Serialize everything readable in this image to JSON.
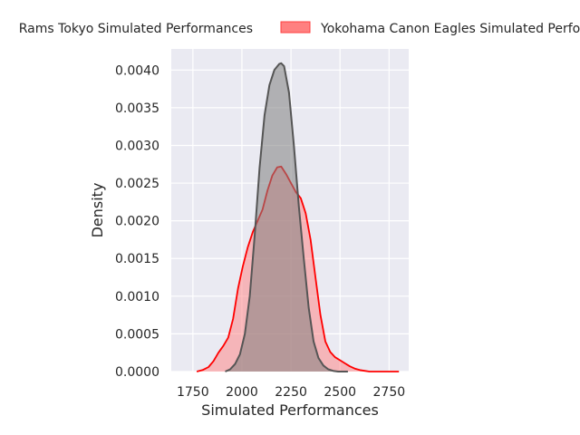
{
  "chart_data": {
    "type": "area",
    "chart_kind": "kde density",
    "title": "",
    "xlabel": "Simulated Performances",
    "ylabel": "Density",
    "xlim": [
      1640,
      2850
    ],
    "ylim": [
      0,
      0.00428
    ],
    "x_ticks": [
      1750,
      2000,
      2250,
      2500,
      2750
    ],
    "x_tick_labels": [
      "1750",
      "2000",
      "2250",
      "2500",
      "2750"
    ],
    "y_ticks": [
      0,
      0.0005,
      0.001,
      0.0015,
      0.002,
      0.0025,
      0.003,
      0.0035,
      0.004
    ],
    "y_tick_labels": [
      "0.0000",
      "0.0005",
      "0.0010",
      "0.0015",
      "0.0020",
      "0.0025",
      "0.0030",
      "0.0035",
      "0.0040"
    ],
    "grid": true,
    "background_color": "#eaeaf2",
    "legend_position": "top-center, outside plot",
    "series": [
      {
        "name": "Rams Tokyo Simulated Performances",
        "color": "#555555",
        "fill_color": "#808080",
        "x": [
          1915,
          1940,
          1965,
          1990,
          2015,
          2040,
          2065,
          2090,
          2115,
          2140,
          2165,
          2190,
          2200,
          2215,
          2240,
          2265,
          2290,
          2315,
          2340,
          2365,
          2390,
          2415,
          2440,
          2465,
          2490,
          2515,
          2540
        ],
        "y": [
          0.0,
          3e-05,
          0.0001,
          0.00023,
          0.0005,
          0.001,
          0.0018,
          0.0027,
          0.0034,
          0.0038,
          0.004,
          0.00408,
          0.00409,
          0.00405,
          0.0037,
          0.003,
          0.0022,
          0.0015,
          0.00085,
          0.0004,
          0.00018,
          8e-05,
          3e-05,
          1e-05,
          0.0,
          0.0,
          0.0
        ]
      },
      {
        "name": "Yokohama Canon Eagles Simulated Performances",
        "color": "#ff0000",
        "fill_color": "#ff8080",
        "x": [
          1770,
          1800,
          1830,
          1855,
          1880,
          1905,
          1930,
          1955,
          1980,
          2005,
          2030,
          2055,
          2080,
          2105,
          2130,
          2155,
          2180,
          2200,
          2225,
          2250,
          2275,
          2300,
          2325,
          2350,
          2375,
          2400,
          2425,
          2450,
          2475,
          2500,
          2525,
          2550,
          2575,
          2600,
          2625,
          2650,
          2700,
          2750,
          2800
        ],
        "y": [
          0.0,
          2e-05,
          6e-05,
          0.00014,
          0.00025,
          0.00034,
          0.00045,
          0.0007,
          0.0011,
          0.0014,
          0.00165,
          0.00185,
          0.002,
          0.00215,
          0.0024,
          0.0026,
          0.00271,
          0.00272,
          0.00262,
          0.0025,
          0.00238,
          0.0023,
          0.0021,
          0.00175,
          0.00125,
          0.00075,
          0.0004,
          0.00026,
          0.00019,
          0.00015,
          0.00011,
          7e-05,
          4e-05,
          2e-05,
          1e-05,
          0.0,
          0.0,
          0.0,
          0.0
        ]
      }
    ]
  }
}
